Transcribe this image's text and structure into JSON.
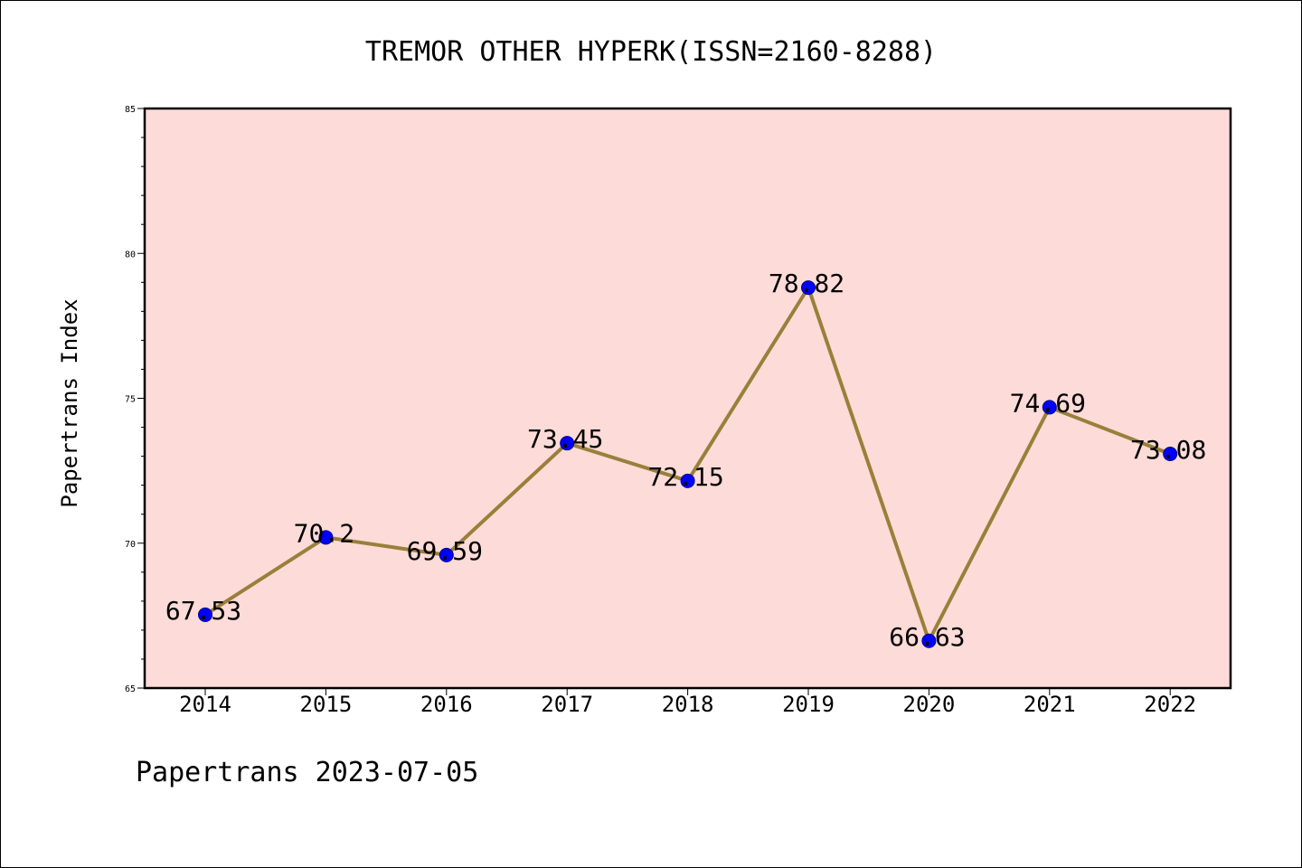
{
  "chart_data": {
    "type": "line",
    "title": "TREMOR OTHER HYPERK(ISSN=2160-8288)",
    "ylabel": "Papertrans Index",
    "xlabel": "",
    "x": [
      "2014",
      "2015",
      "2016",
      "2017",
      "2018",
      "2019",
      "2020",
      "2021",
      "2022"
    ],
    "series": [
      {
        "values": [
          67.53,
          70.2,
          69.59,
          73.45,
          72.15,
          78.82,
          66.63,
          74.69,
          73.08
        ],
        "labels": [
          "67.53",
          "70.2",
          "69.59",
          "73.45",
          "72.15",
          "78.82",
          "66.63",
          "74.69",
          "73.08"
        ]
      }
    ],
    "ylim": [
      65,
      85
    ],
    "yticks": [
      "65",
      "70",
      "75",
      "80",
      "85"
    ],
    "grid": false,
    "legend": "none",
    "colors": {
      "plot_background": "#fddbd8",
      "line": "#9a7f3a",
      "marker": "#0000ff",
      "marker_edge": "#00008b"
    }
  },
  "footer": {
    "text": "Papertrans 2023-07-05"
  }
}
